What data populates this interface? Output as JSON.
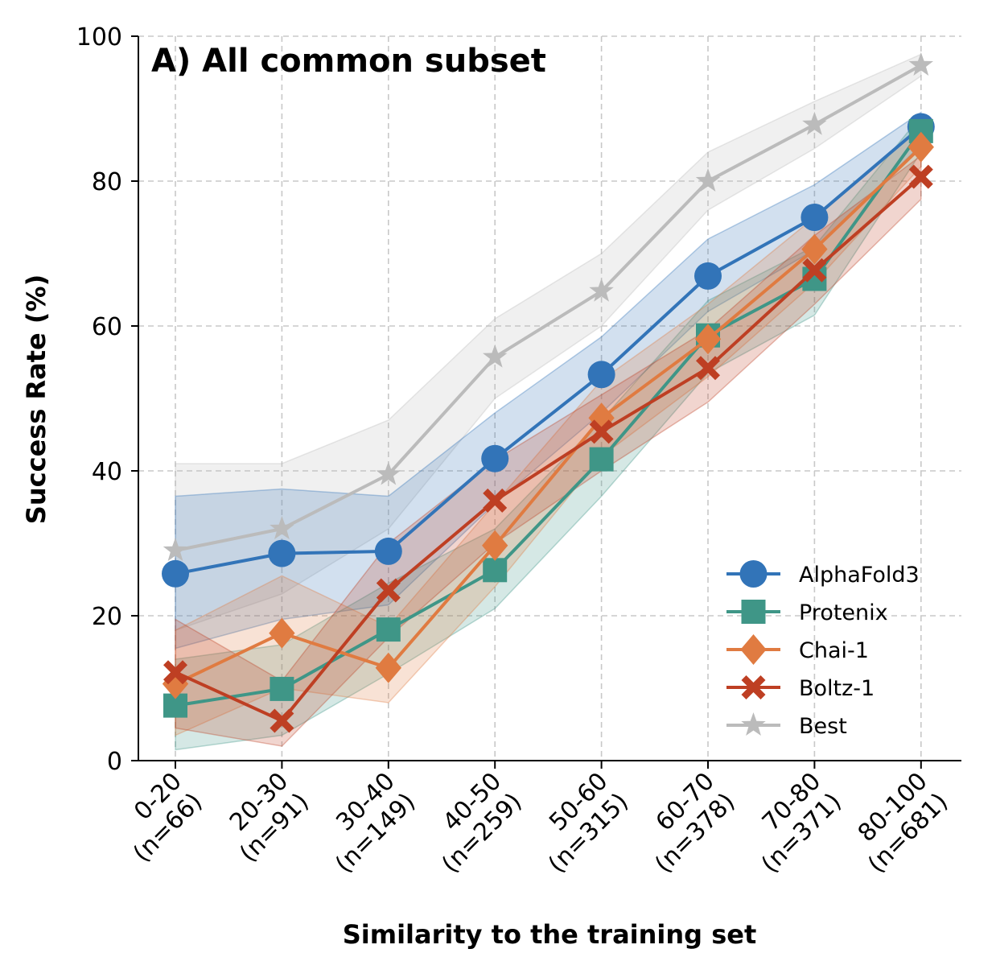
{
  "chart_data": {
    "type": "line",
    "title": "A) All common subset",
    "xlabel": "Similarity to the training set",
    "ylabel": "Success Rate (%)",
    "ylim": [
      0,
      100
    ],
    "yticks": [
      0,
      20,
      40,
      60,
      80,
      100
    ],
    "grid": true,
    "legend_position": "lower-right",
    "categories": [
      {
        "range": "0-20",
        "n": "(n=66)"
      },
      {
        "range": "20-30",
        "n": "(n=91)"
      },
      {
        "range": "30-40",
        "n": "(n=149)"
      },
      {
        "range": "40-50",
        "n": "(n=259)"
      },
      {
        "range": "50-60",
        "n": "(n=315)"
      },
      {
        "range": "60-70",
        "n": "(n=378)"
      },
      {
        "range": "70-80",
        "n": "(n=371)"
      },
      {
        "range": "80-100",
        "n": "(n=681)"
      }
    ],
    "series": [
      {
        "name": "Best",
        "color": "#bbbbbb",
        "marker": "star",
        "values": [
          29,
          32,
          39.5,
          55.7,
          64.8,
          80,
          87.8,
          96
        ],
        "lower": [
          18,
          23,
          32,
          50,
          60,
          76,
          84.5,
          94.5
        ],
        "upper": [
          41,
          41,
          47,
          61,
          70,
          84,
          91,
          97.5
        ]
      },
      {
        "name": "AlphaFold3",
        "color": "#3274b8",
        "marker": "circle",
        "values": [
          25.8,
          28.6,
          28.9,
          41.7,
          53.3,
          66.9,
          75,
          87.5
        ],
        "lower": [
          15.5,
          19.5,
          21.5,
          35.5,
          48,
          62,
          70.5,
          85
        ],
        "upper": [
          36.5,
          37.5,
          36.5,
          48,
          58.5,
          72,
          79.5,
          89.5
        ]
      },
      {
        "name": "Protenix",
        "color": "#3f9687",
        "marker": "square",
        "values": [
          7.6,
          9.9,
          18.1,
          26.3,
          41.6,
          58.7,
          66.5,
          86.9
        ],
        "lower": [
          1.5,
          3.5,
          12,
          21,
          36.5,
          53.5,
          61.5,
          84
        ],
        "upper": [
          14,
          16,
          24.5,
          32,
          47,
          63.5,
          71,
          89
        ]
      },
      {
        "name": "Chai-1",
        "color": "#e07b41",
        "marker": "diamond",
        "values": [
          10.6,
          17.6,
          12.8,
          29.7,
          47.3,
          58.2,
          70.6,
          84.7
        ],
        "lower": [
          3.5,
          10,
          8,
          24,
          42,
          53,
          66,
          82
        ],
        "upper": [
          18,
          25.5,
          18.5,
          35.5,
          52.5,
          63,
          75,
          87.5
        ]
      },
      {
        "name": "Boltz-1",
        "color": "#be3f23",
        "marker": "x",
        "values": [
          12.2,
          5.5,
          23.5,
          35.9,
          45.4,
          54.2,
          67.7,
          80.6
        ],
        "lower": [
          4.5,
          2,
          17,
          30,
          40,
          49.5,
          63,
          77.5
        ],
        "upper": [
          19.5,
          11,
          30,
          41.5,
          50.5,
          59.5,
          72.5,
          83.5
        ]
      }
    ],
    "legend_order": [
      "AlphaFold3",
      "Protenix",
      "Chai-1",
      "Boltz-1",
      "Best"
    ]
  }
}
